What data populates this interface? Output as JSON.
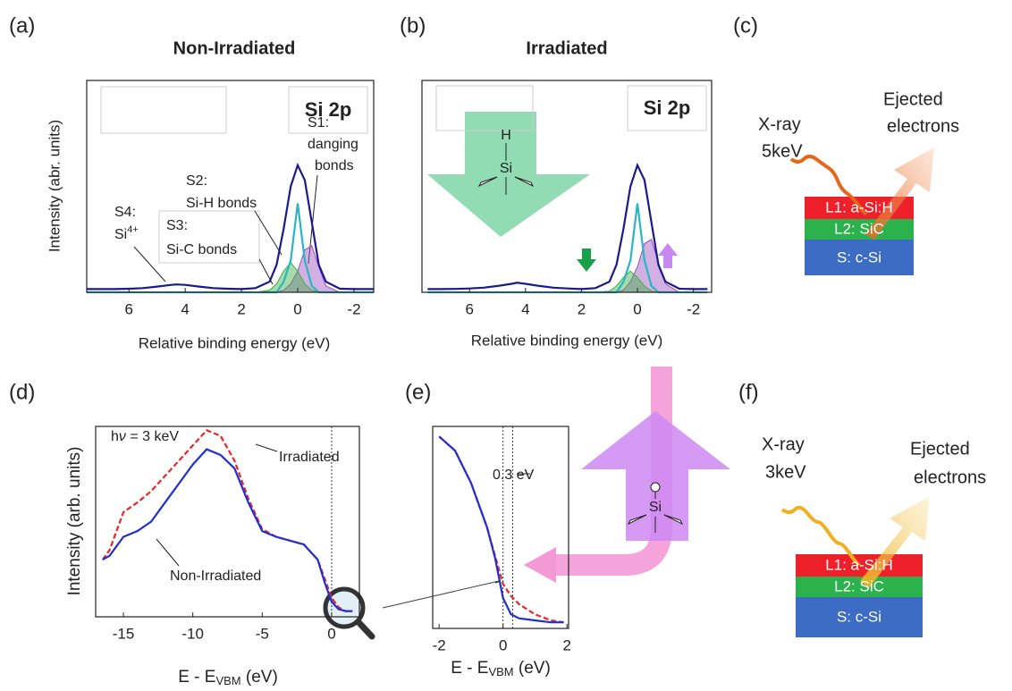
{
  "chart_data": [
    {
      "type": "line",
      "panel": "(a)",
      "title": "Non-Irradiated",
      "xlabel": "Relative binding energy (eV)",
      "ylabel": "Intensity (abr. units)",
      "xlim": [
        7.5,
        -2.7
      ],
      "xticks": [
        6,
        4,
        2,
        0,
        -2
      ],
      "ylim": [
        0,
        1
      ],
      "annotations": {
        "box": "Si 2p",
        "s1": [
          "S1:",
          "danging",
          "bonds"
        ],
        "s2": [
          "S2:",
          "Si-H bonds"
        ],
        "s3": [
          "S3:",
          "Si-C bonds"
        ],
        "s4": [
          "S4:",
          "Si"
        ],
        "s4_sup": "4+"
      },
      "x": [
        7.5,
        7,
        6.5,
        6,
        5.5,
        5,
        4.5,
        4.3,
        4,
        3.5,
        3,
        2.5,
        2,
        1.5,
        1,
        0.75,
        0.5,
        0.25,
        0,
        -0.25,
        -0.5,
        -0.75,
        -1,
        -1.5,
        -2,
        -2.7
      ],
      "series": [
        {
          "color": "#9b4fc0",
          "fill": true,
          "values": [
            0,
            0,
            0,
            0,
            0,
            0,
            0,
            0,
            0,
            0,
            0,
            0,
            0,
            0,
            0,
            0,
            0.01,
            0.04,
            0.1,
            0.2,
            0.22,
            0.12,
            0.03,
            0,
            0,
            0
          ]
        },
        {
          "color": "#3cb043",
          "fill": true,
          "values": [
            0,
            0,
            0,
            0,
            0,
            0,
            0,
            0,
            0,
            0,
            0,
            0,
            0,
            0,
            0.01,
            0.04,
            0.1,
            0.14,
            0.1,
            0.04,
            0.01,
            0,
            0,
            0,
            0,
            0
          ]
        },
        {
          "color": "#2bb5c4",
          "fill": false,
          "values": [
            0,
            0,
            0,
            0,
            0,
            0,
            0,
            0,
            0,
            0,
            0,
            0,
            0,
            0,
            0,
            0,
            0.05,
            0.15,
            0.42,
            0.15,
            0.03,
            0,
            0,
            0,
            0,
            0
          ]
        },
        {
          "color": "#1a1a8c",
          "fill": false,
          "values": [
            0.015,
            0.015,
            0.015,
            0.017,
            0.02,
            0.027,
            0.035,
            0.037,
            0.035,
            0.027,
            0.02,
            0.017,
            0.015,
            0.02,
            0.05,
            0.13,
            0.3,
            0.5,
            0.6,
            0.53,
            0.33,
            0.13,
            0.05,
            0.017,
            0.015,
            0.015
          ]
        }
      ]
    },
    {
      "type": "line",
      "panel": "(b)",
      "title": "Irradiated",
      "xlabel": "Relative binding energy (eV)",
      "xlim": [
        7.7,
        -2.65
      ],
      "xticks": [
        6,
        4,
        2,
        0,
        -2
      ],
      "ylim": [
        0,
        1
      ],
      "annotations": {
        "box": "Si 2p",
        "h": "H",
        "si": "Si"
      },
      "x": [
        7.5,
        7,
        6.5,
        6,
        5.5,
        5,
        4.5,
        4.3,
        4,
        3.5,
        3,
        2.5,
        2,
        1.5,
        1,
        0.75,
        0.5,
        0.25,
        0,
        -0.25,
        -0.5,
        -0.75,
        -1,
        -1.5,
        -2,
        -2.5
      ],
      "series": [
        {
          "color": "#9b4fc0",
          "fill": true,
          "values": [
            0,
            0,
            0,
            0,
            0,
            0,
            0,
            0,
            0,
            0,
            0,
            0,
            0,
            0,
            0,
            0,
            0.01,
            0.05,
            0.12,
            0.23,
            0.25,
            0.14,
            0.04,
            0,
            0,
            0
          ]
        },
        {
          "color": "#3cb043",
          "fill": true,
          "values": [
            0,
            0,
            0,
            0,
            0,
            0,
            0,
            0,
            0,
            0,
            0,
            0,
            0,
            0,
            0.005,
            0.03,
            0.07,
            0.1,
            0.07,
            0.03,
            0.005,
            0,
            0,
            0,
            0,
            0
          ]
        },
        {
          "color": "#2bb5c4",
          "fill": false,
          "values": [
            0,
            0,
            0,
            0,
            0,
            0,
            0,
            0,
            0,
            0,
            0,
            0,
            0,
            0,
            0,
            0,
            0.05,
            0.15,
            0.42,
            0.15,
            0.03,
            0,
            0,
            0,
            0,
            0
          ]
        },
        {
          "color": "#1a1a8c",
          "fill": false,
          "values": [
            0.015,
            0.015,
            0.016,
            0.018,
            0.022,
            0.03,
            0.04,
            0.045,
            0.04,
            0.03,
            0.022,
            0.018,
            0.015,
            0.02,
            0.05,
            0.13,
            0.3,
            0.5,
            0.6,
            0.53,
            0.33,
            0.13,
            0.05,
            0.017,
            0.015,
            0.015
          ]
        }
      ]
    },
    {
      "type": "line",
      "panel": "(d)",
      "ylabel": "Intensity (arb. units)",
      "xlabel": [
        "E - E",
        "VBM",
        " (eV)"
      ],
      "note": [
        "h",
        "ν",
        " = 3 keV"
      ],
      "xlim": [
        -17,
        2
      ],
      "xticks": [
        -15,
        -10,
        -5,
        0
      ],
      "ylim": [
        0,
        1
      ],
      "vlines": [
        0
      ],
      "x": [
        -16.5,
        -16,
        -15,
        -14,
        -13,
        -12,
        -11,
        -10,
        -9,
        -8,
        -7,
        -6,
        -5,
        -4,
        -3,
        -2,
        -1,
        -0.5,
        0,
        0.5,
        1,
        1.5
      ],
      "series": [
        {
          "name": "Irradiated",
          "color": "#e8262a",
          "style": "dashed",
          "values": [
            0.3,
            0.35,
            0.55,
            0.6,
            0.66,
            0.74,
            0.82,
            0.9,
            0.98,
            0.95,
            0.82,
            0.62,
            0.46,
            0.42,
            0.4,
            0.38,
            0.3,
            0.2,
            0.1,
            0.05,
            0.03,
            0.03
          ]
        },
        {
          "name": "Non-Irradiated",
          "color": "#1f2fd0",
          "style": "solid",
          "values": [
            0.3,
            0.32,
            0.42,
            0.45,
            0.5,
            0.6,
            0.7,
            0.8,
            0.88,
            0.85,
            0.78,
            0.6,
            0.45,
            0.42,
            0.4,
            0.38,
            0.3,
            0.18,
            0.08,
            0.04,
            0.03,
            0.03
          ]
        }
      ]
    },
    {
      "type": "line",
      "panel": "(e)",
      "xlabel": [
        "E - E",
        "VBM",
        " (eV)"
      ],
      "note": "0.3 eV",
      "xlim": [
        -2.2,
        2.05
      ],
      "xticks": [
        -2,
        0,
        2
      ],
      "ylim": [
        0,
        1
      ],
      "vlines": [
        0,
        0.3
      ],
      "x": [
        -2,
        -1.5,
        -1,
        -0.5,
        -0.25,
        0,
        0.25,
        0.5,
        1,
        1.5,
        1.9
      ],
      "series": [
        {
          "color": "#e8262a",
          "style": "dashed",
          "values": [
            0.95,
            0.88,
            0.72,
            0.5,
            0.36,
            0.22,
            0.16,
            0.12,
            0.07,
            0.04,
            0.03
          ]
        },
        {
          "color": "#1f2fd0",
          "style": "solid",
          "values": [
            0.95,
            0.88,
            0.72,
            0.5,
            0.35,
            0.15,
            0.07,
            0.05,
            0.04,
            0.03,
            0.03
          ]
        }
      ]
    }
  ],
  "diagrams": [
    {
      "panel": "(c)",
      "source": [
        "X-ray",
        "5keV"
      ],
      "ejected": [
        "Ejected",
        "electrons"
      ],
      "layers": [
        "L1: a-Si:H",
        "L2: SiC",
        "S: c-Si"
      ]
    },
    {
      "panel": "(f)",
      "source": [
        "X-ray",
        "3keV"
      ],
      "ejected": [
        "Ejected",
        "electrons"
      ],
      "layers": [
        "L1: a-Si:H",
        "L2: SiC",
        "S: c-Si"
      ]
    }
  ],
  "arrow_label": "Si"
}
